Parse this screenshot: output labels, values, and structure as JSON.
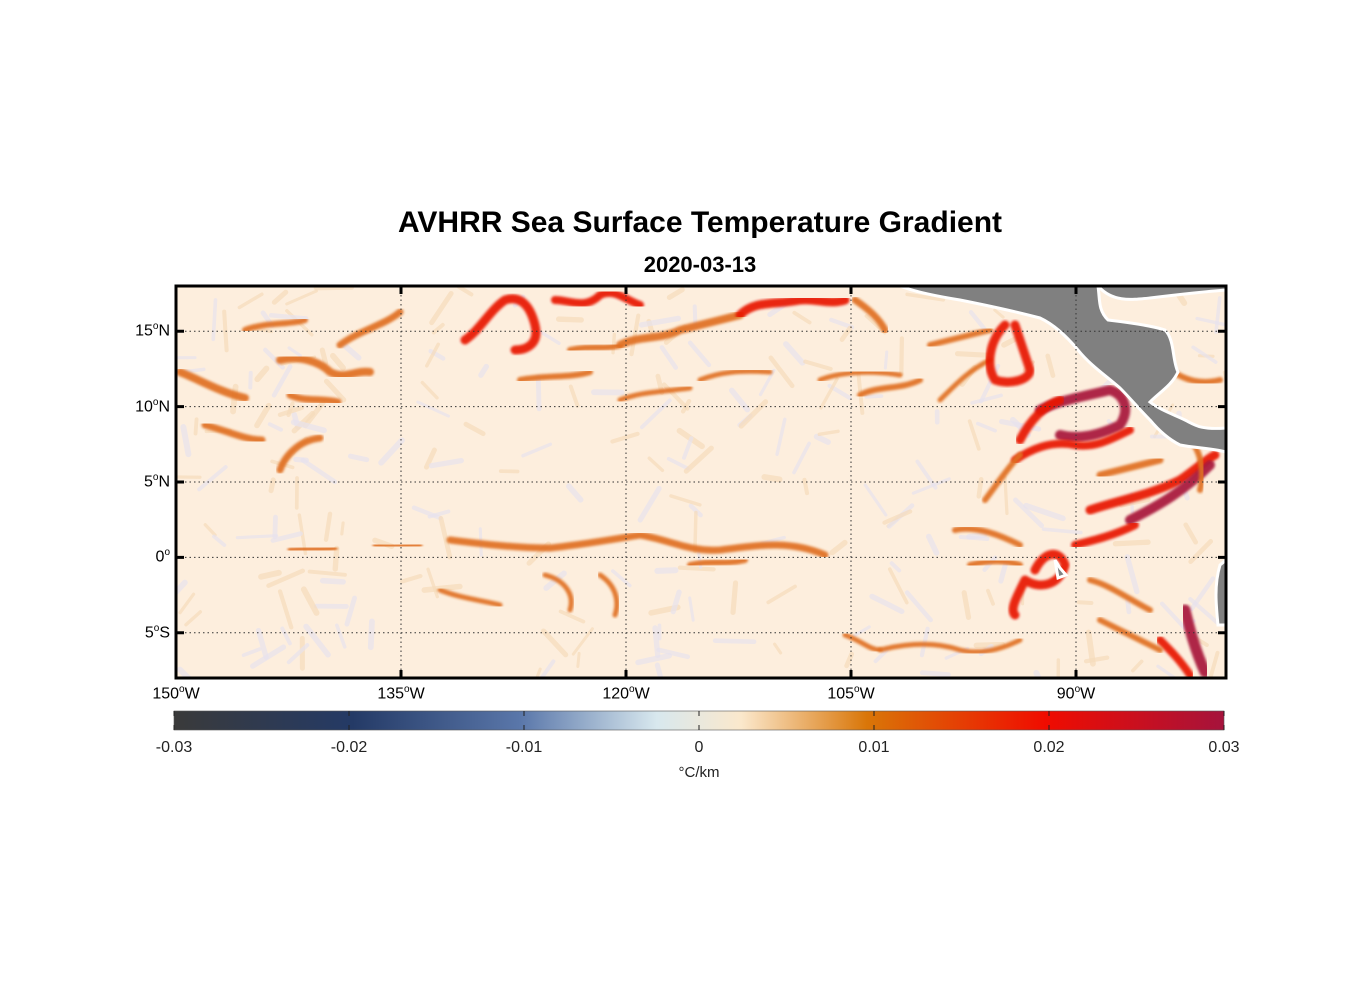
{
  "title": "AVHRR Sea Surface Temperature Gradient",
  "subtitle": "2020-03-13",
  "chart_data": {
    "type": "heatmap",
    "lon_range": [
      -150,
      -80
    ],
    "lat_range": [
      -8,
      18
    ],
    "lat_ticks": [
      {
        "value": 15,
        "num": "15",
        "hemi": "N"
      },
      {
        "value": 10,
        "num": "10",
        "hemi": "N"
      },
      {
        "value": 5,
        "num": "5",
        "hemi": "N"
      },
      {
        "value": 0,
        "num": "0",
        "hemi": ""
      },
      {
        "value": -5,
        "num": "5",
        "hemi": "S"
      }
    ],
    "lon_ticks": [
      {
        "value": -150,
        "num": "150",
        "hemi": "W"
      },
      {
        "value": -135,
        "num": "135",
        "hemi": "W"
      },
      {
        "value": -120,
        "num": "120",
        "hemi": "W"
      },
      {
        "value": -105,
        "num": "105",
        "hemi": "W"
      },
      {
        "value": -90,
        "num": "90",
        "hemi": "W"
      }
    ],
    "grid": true,
    "colorbar": {
      "min": -0.03,
      "max": 0.03,
      "ticks": [
        "-0.03",
        "-0.02",
        "-0.01",
        "0",
        "0.01",
        "0.02",
        "0.03"
      ],
      "label": "°C/km",
      "colors": [
        "#3a3a3a",
        "#243a66",
        "#5a77aa",
        "#d8e8ee",
        "#fbe8cc",
        "#d97608",
        "#f00c00",
        "#a5133c"
      ]
    },
    "land_color": "#808080",
    "fronts_color_scale": {
      "weak": "#f2cfa0",
      "moderate": "#e07020",
      "strong": "#e81800",
      "very_strong": "#a8143a"
    }
  }
}
